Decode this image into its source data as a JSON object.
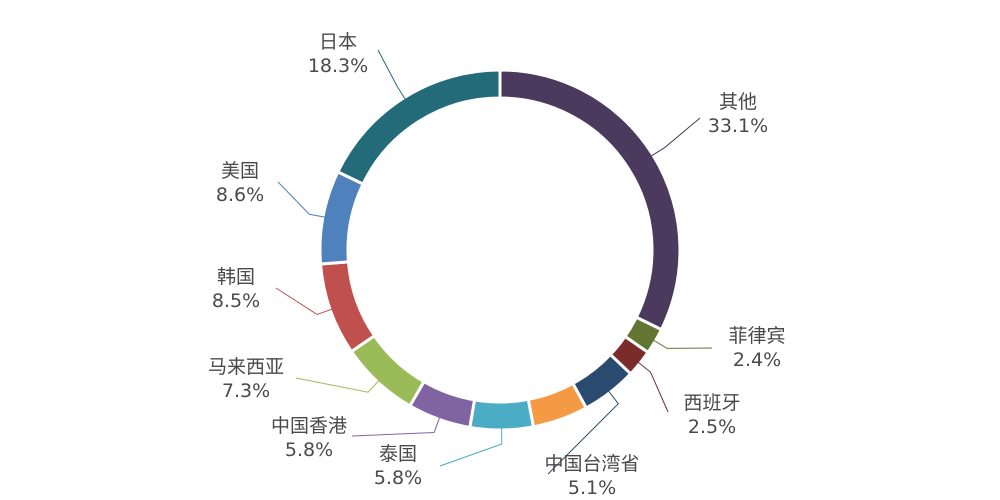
{
  "chart_data": {
    "type": "pie",
    "variant": "donut",
    "title": "",
    "legend": "none",
    "unit": "%",
    "slices": [
      {
        "name": "其他",
        "value": 33.1,
        "label": "33.1%",
        "color": "#4b3a5e"
      },
      {
        "name": "菲律宾",
        "value": 2.4,
        "label": "2.4%",
        "color": "#627532"
      },
      {
        "name": "西班牙",
        "value": 2.5,
        "label": "2.5%",
        "color": "#7a2c2c"
      },
      {
        "name": "中国台湾省",
        "value": 5.1,
        "label": "5.1%",
        "color": "#2b4a70"
      },
      {
        "name": "中国台湾省",
        "value": 5.1,
        "label": "5.1%",
        "color": "#f59a44"
      },
      {
        "name": "泰国",
        "value": 5.8,
        "label": "5.8%",
        "color": "#4bacc6"
      },
      {
        "name": "中国香港",
        "value": 5.8,
        "label": "5.8%",
        "color": "#8064a2"
      },
      {
        "name": "马来西亚",
        "value": 7.3,
        "label": "7.3%",
        "color": "#9bbb59"
      },
      {
        "name": "韩国",
        "value": 8.5,
        "label": "8.5%",
        "color": "#c0504d"
      },
      {
        "name": "美国",
        "value": 8.6,
        "label": "8.6%",
        "color": "#4f81bd"
      },
      {
        "name": "日本",
        "value": 18.3,
        "label": "18.3%",
        "color": "#246b7a"
      }
    ]
  }
}
